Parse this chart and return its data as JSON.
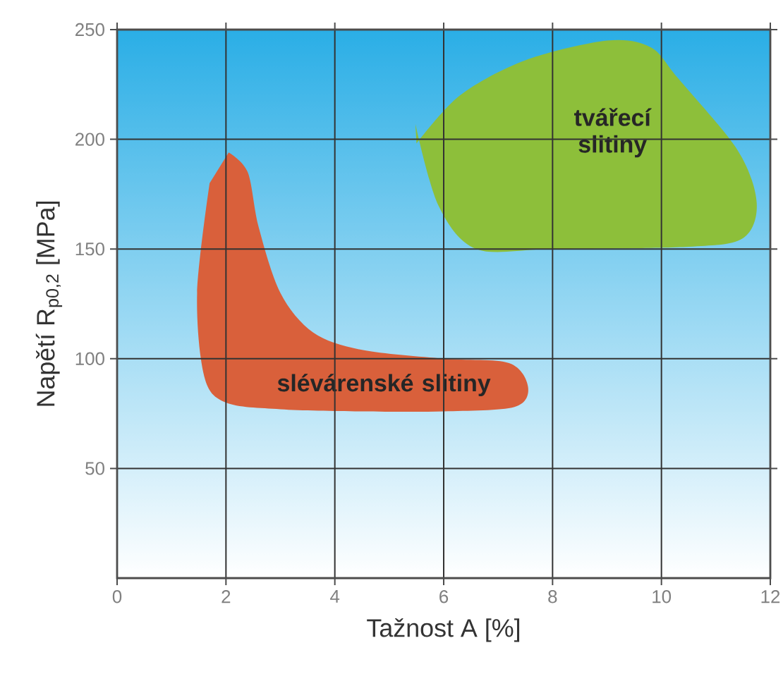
{
  "chart_data": {
    "type": "area",
    "xlabel": "Tažnost  A [%]",
    "ylabel": "Napětí  R$_{p0,2}$  [MPa]",
    "xlim": [
      0,
      12
    ],
    "ylim": [
      0,
      250
    ],
    "xticks": [
      0,
      2,
      4,
      6,
      8,
      10,
      12
    ],
    "yticks": [
      50,
      100,
      150,
      200,
      250
    ],
    "grid": true,
    "legend": false,
    "series": [
      {
        "name": "slévárenské slitiny",
        "color": "#d9603b",
        "x": [
          2.05,
          2.4,
          2.6,
          3.0,
          3.6,
          4.5,
          6.0,
          7.2,
          7.55,
          7.3,
          6.0,
          4.5,
          3.0,
          2.0,
          1.6,
          1.47,
          1.7
        ],
        "values": [
          194,
          185,
          160,
          130,
          112,
          104,
          100,
          98,
          87,
          78,
          76,
          76,
          77,
          80,
          92,
          130,
          180
        ]
      },
      {
        "name": "tvářecí slitiny",
        "color": "#8dbf3a",
        "x": [
          5.5,
          6.3,
          7.5,
          9.0,
          9.8,
          10.3,
          11.4,
          11.75,
          11.5,
          10.5,
          8.0,
          6.6,
          5.9,
          5.48
        ],
        "values": [
          198,
          220,
          236,
          245,
          242,
          228,
          195,
          171,
          155,
          151,
          150,
          150,
          170,
          207
        ]
      }
    ]
  }
}
